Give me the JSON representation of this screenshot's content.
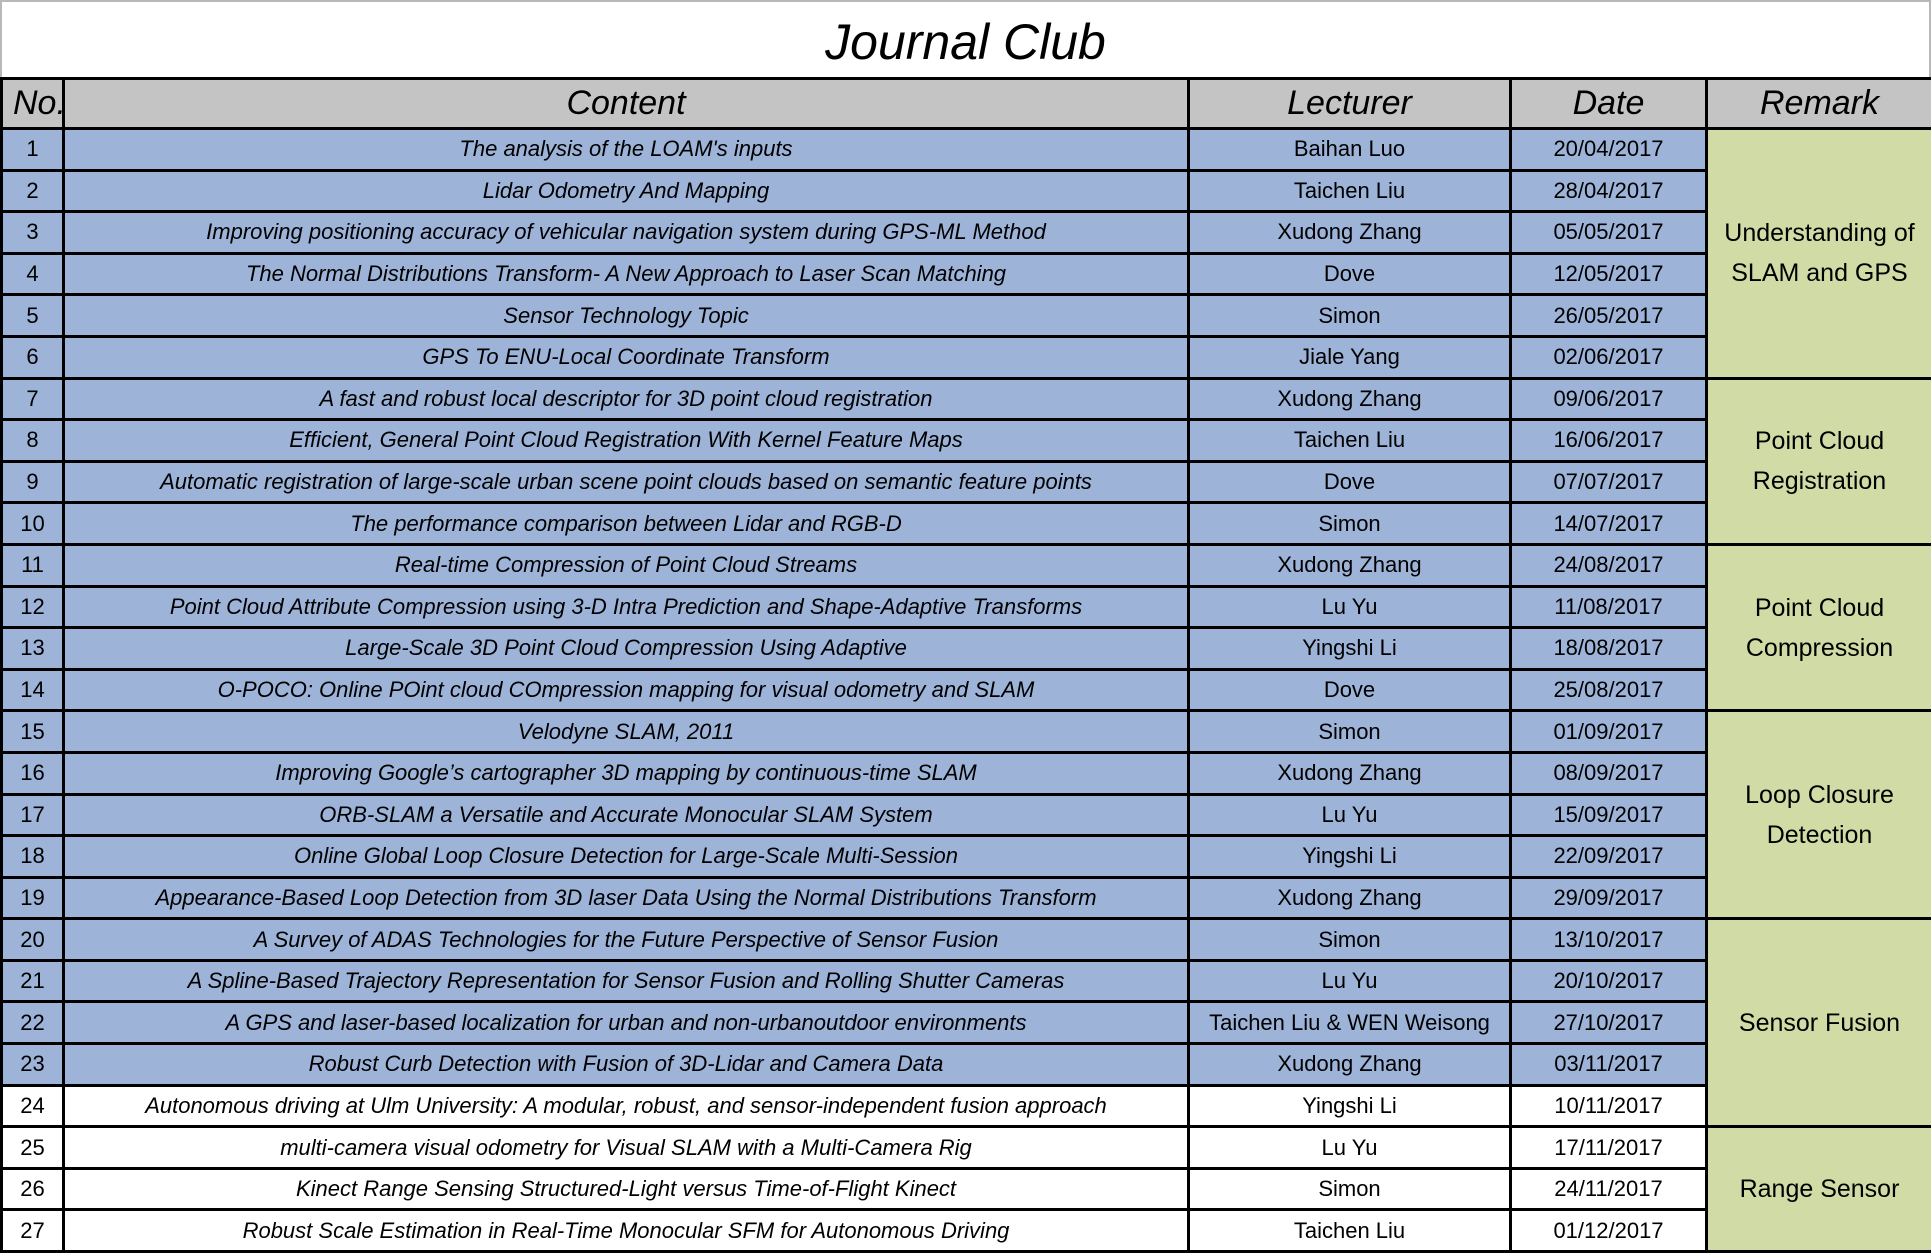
{
  "title": "Journal Club",
  "headers": {
    "no": "No.",
    "content": "Content",
    "lecturer": "Lecturer",
    "date": "Date",
    "remark": "Remark"
  },
  "colors": {
    "header_bg": "#c4c4c4",
    "row_blue": "#9db3d8",
    "remark_green": "#d1dba6"
  },
  "rows": [
    {
      "no": "1",
      "content": "The analysis of the LOAM's inputs",
      "lecturer": "Baihan Luo",
      "date": "20/04/2017",
      "highlight": true
    },
    {
      "no": "2",
      "content": "Lidar Odometry And Mapping",
      "lecturer": "Taichen Liu",
      "date": "28/04/2017",
      "highlight": true
    },
    {
      "no": "3",
      "content": "Improving positioning accuracy of vehicular navigation system during GPS-ML Method",
      "lecturer": "Xudong Zhang",
      "date": "05/05/2017",
      "highlight": true
    },
    {
      "no": "4",
      "content": "The Normal Distributions Transform- A New Approach to Laser Scan Matching",
      "lecturer": "Dove",
      "date": "12/05/2017",
      "highlight": true
    },
    {
      "no": "5",
      "content": "Sensor Technology Topic",
      "lecturer": "Simon",
      "date": "26/05/2017",
      "highlight": true
    },
    {
      "no": "6",
      "content": "GPS To ENU-Local Coordinate Transform",
      "lecturer": "Jiale Yang",
      "date": "02/06/2017",
      "highlight": true
    },
    {
      "no": "7",
      "content": "A fast and robust local descriptor for 3D point cloud registration",
      "lecturer": "Xudong Zhang",
      "date": "09/06/2017",
      "highlight": true
    },
    {
      "no": "8",
      "content": "Efficient, General Point Cloud Registration With Kernel Feature Maps",
      "lecturer": "Taichen Liu",
      "date": "16/06/2017",
      "highlight": true
    },
    {
      "no": "9",
      "content": "Automatic registration of large-scale urban scene point clouds based on semantic feature points",
      "lecturer": "Dove",
      "date": "07/07/2017",
      "highlight": true
    },
    {
      "no": "10",
      "content": "The performance comparison between Lidar and RGB-D",
      "lecturer": "Simon",
      "date": "14/07/2017",
      "highlight": true
    },
    {
      "no": "11",
      "content": "Real-time Compression of Point Cloud Streams",
      "lecturer": "Xudong Zhang",
      "date": "24/08/2017",
      "highlight": true
    },
    {
      "no": "12",
      "content": "Point Cloud Attribute Compression using 3-D Intra Prediction and Shape-Adaptive Transforms",
      "lecturer": "Lu Yu",
      "date": "11/08/2017",
      "highlight": true
    },
    {
      "no": "13",
      "content": "Large-Scale 3D Point Cloud Compression Using Adaptive",
      "lecturer": "Yingshi Li",
      "date": "18/08/2017",
      "highlight": true
    },
    {
      "no": "14",
      "content": "O-POCO: Online POint cloud COmpression mapping for visual odometry and SLAM",
      "lecturer": "Dove",
      "date": "25/08/2017",
      "highlight": true
    },
    {
      "no": "15",
      "content": "Velodyne SLAM, 2011",
      "lecturer": "Simon",
      "date": "01/09/2017",
      "highlight": true
    },
    {
      "no": "16",
      "content": "Improving Google’s cartographer 3D mapping by continuous-time SLAM",
      "lecturer": "Xudong Zhang",
      "date": "08/09/2017",
      "highlight": true
    },
    {
      "no": "17",
      "content": "ORB-SLAM a Versatile and Accurate Monocular SLAM System",
      "lecturer": "Lu Yu",
      "date": "15/09/2017",
      "highlight": true
    },
    {
      "no": "18",
      "content": "Online Global Loop Closure Detection for Large-Scale Multi-Session",
      "lecturer": "Yingshi Li",
      "date": "22/09/2017",
      "highlight": true
    },
    {
      "no": "19",
      "content": "Appearance-Based Loop Detection from 3D laser Data Using the Normal Distributions Transform",
      "lecturer": "Xudong Zhang",
      "date": "29/09/2017",
      "highlight": true
    },
    {
      "no": "20",
      "content": "A Survey of ADAS Technologies for the Future Perspective of Sensor Fusion",
      "lecturer": "Simon",
      "date": "13/10/2017",
      "highlight": true
    },
    {
      "no": "21",
      "content": "A Spline-Based Trajectory Representation for Sensor Fusion and Rolling Shutter Cameras",
      "lecturer": "Lu Yu",
      "date": "20/10/2017",
      "highlight": true
    },
    {
      "no": "22",
      "content": "A GPS and laser-based localization for urban and non-urbanoutdoor environments",
      "lecturer": "Taichen Liu & WEN Weisong",
      "date": "27/10/2017",
      "highlight": true
    },
    {
      "no": "23",
      "content": "Robust Curb Detection with Fusion of 3D-Lidar and Camera Data",
      "lecturer": "Xudong Zhang",
      "date": "03/11/2017",
      "highlight": true
    },
    {
      "no": "24",
      "content": "Autonomous driving at Ulm University: A modular, robust, and sensor-independent fusion approach",
      "lecturer": "Yingshi Li",
      "date": "10/11/2017",
      "highlight": false
    },
    {
      "no": "25",
      "content": "multi-camera visual odometry for Visual SLAM with a Multi-Camera Rig",
      "lecturer": "Lu Yu",
      "date": "17/11/2017",
      "highlight": false
    },
    {
      "no": "26",
      "content": "Kinect Range Sensing Structured-Light versus Time-of-Flight Kinect",
      "lecturer": "Simon",
      "date": "24/11/2017",
      "highlight": false
    },
    {
      "no": "27",
      "content": "Robust Scale Estimation in Real-Time Monocular SFM for Autonomous Driving",
      "lecturer": "Taichen Liu",
      "date": "01/12/2017",
      "highlight": false
    }
  ],
  "remarks": [
    {
      "start": 0,
      "span": 6,
      "text": "Understanding of SLAM and GPS"
    },
    {
      "start": 6,
      "span": 4,
      "text": "Point Cloud Registration"
    },
    {
      "start": 10,
      "span": 4,
      "text": "Point Cloud Compression"
    },
    {
      "start": 14,
      "span": 5,
      "text": "Loop Closure Detection"
    },
    {
      "start": 19,
      "span": 5,
      "text": "Sensor Fusion"
    },
    {
      "start": 24,
      "span": 3,
      "text": "Range Sensor"
    }
  ]
}
